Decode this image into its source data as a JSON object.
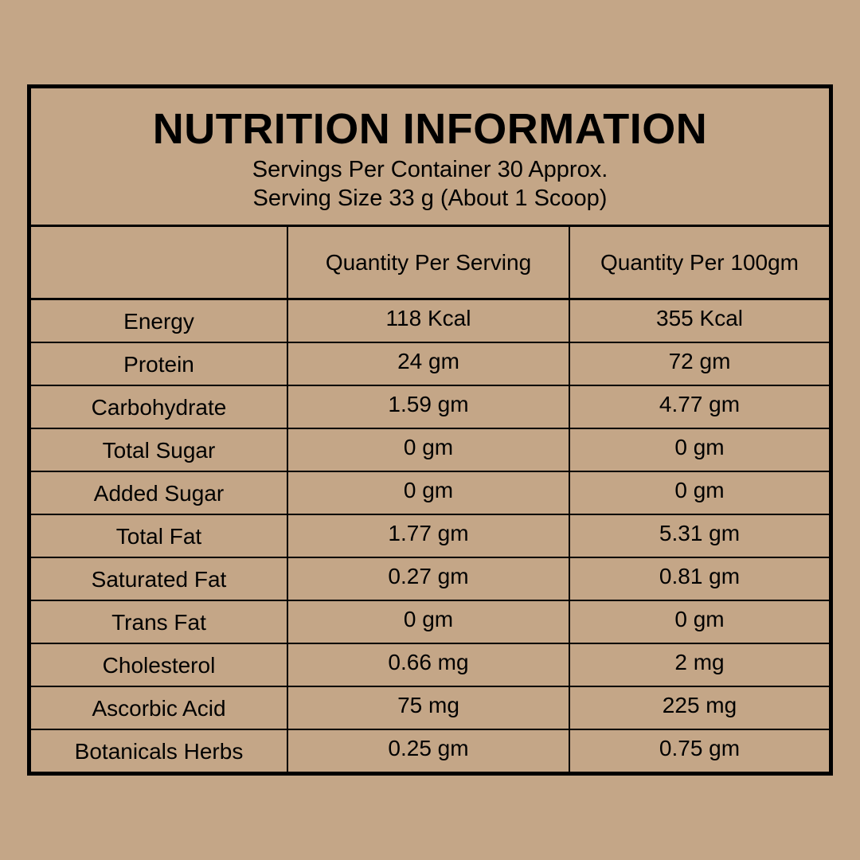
{
  "label": {
    "title": "NUTRITION INFORMATION",
    "servings_per_container": "Servings Per Container 30 Approx.",
    "serving_size": "Serving Size 33 g (About 1 Scoop)"
  },
  "table": {
    "columns": [
      "",
      "Quantity Per Serving",
      "Quantity Per 100gm"
    ],
    "rows": [
      {
        "nutrient": "Energy",
        "per_serving": "118 Kcal",
        "per_100g": "355 Kcal"
      },
      {
        "nutrient": "Protein",
        "per_serving": "24 gm",
        "per_100g": "72 gm"
      },
      {
        "nutrient": "Carbohydrate",
        "per_serving": "1.59 gm",
        "per_100g": "4.77 gm"
      },
      {
        "nutrient": "Total Sugar",
        "per_serving": "0 gm",
        "per_100g": "0 gm"
      },
      {
        "nutrient": "Added Sugar",
        "per_serving": "0 gm",
        "per_100g": "0 gm"
      },
      {
        "nutrient": "Total Fat",
        "per_serving": "1.77 gm",
        "per_100g": "5.31 gm"
      },
      {
        "nutrient": "Saturated Fat",
        "per_serving": "0.27 gm",
        "per_100g": "0.81 gm"
      },
      {
        "nutrient": "Trans Fat",
        "per_serving": "0 gm",
        "per_100g": "0 gm"
      },
      {
        "nutrient": "Cholesterol",
        "per_serving": "0.66 mg",
        "per_100g": "2 mg"
      },
      {
        "nutrient": "Ascorbic Acid",
        "per_serving": "75 mg",
        "per_100g": "225 mg"
      },
      {
        "nutrient": "Botanicals Herbs",
        "per_serving": "0.25 gm",
        "per_100g": "0.75 gm"
      }
    ]
  },
  "colors": {
    "background": "#c4a687",
    "ink": "#000000"
  }
}
